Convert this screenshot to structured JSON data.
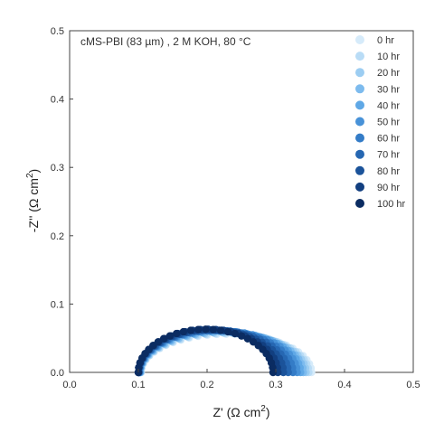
{
  "chart_data": {
    "type": "scatter",
    "title": "",
    "annotation": "cMS-PBI (83 µm) , 2 M KOH, 80 °C",
    "xlabel_base": "Z' (Ω cm",
    "ylabel_base": "-Z'' (Ω cm",
    "label_sup": "2",
    "label_close": ")",
    "xlim": [
      0.0,
      0.5
    ],
    "ylim": [
      0.0,
      0.5
    ],
    "x_ticks": [
      "0.0",
      "0.1",
      "0.2",
      "0.3",
      "0.4",
      "0.5"
    ],
    "y_ticks": [
      "0.0",
      "0.1",
      "0.2",
      "0.3",
      "0.4",
      "0.5"
    ],
    "grid": false,
    "legend_position": "top-right",
    "series": [
      {
        "name": "0 hr",
        "color": "#d6ebfa",
        "r0": 0.104,
        "r1": 0.352,
        "peak": 0.056
      },
      {
        "name": "10 hr",
        "color": "#b9dcf6",
        "r0": 0.104,
        "r1": 0.348,
        "peak": 0.057
      },
      {
        "name": "20 hr",
        "color": "#9ccdf2",
        "r0": 0.103,
        "r1": 0.344,
        "peak": 0.058
      },
      {
        "name": "30 hr",
        "color": "#7dbbee",
        "r0": 0.103,
        "r1": 0.34,
        "peak": 0.059
      },
      {
        "name": "40 hr",
        "color": "#5fa8e6",
        "r0": 0.102,
        "r1": 0.336,
        "peak": 0.06
      },
      {
        "name": "50 hr",
        "color": "#4892d8",
        "r0": 0.102,
        "r1": 0.331,
        "peak": 0.061
      },
      {
        "name": "60 hr",
        "color": "#347cc7",
        "r0": 0.101,
        "r1": 0.325,
        "peak": 0.061
      },
      {
        "name": "70 hr",
        "color": "#2667b2",
        "r0": 0.101,
        "r1": 0.318,
        "peak": 0.062
      },
      {
        "name": "80 hr",
        "color": "#1b539a",
        "r0": 0.1,
        "r1": 0.311,
        "peak": 0.062
      },
      {
        "name": "90 hr",
        "color": "#123f80",
        "r0": 0.1,
        "r1": 0.303,
        "peak": 0.063
      },
      {
        "name": "100 hr",
        "color": "#0b2c62",
        "r0": 0.1,
        "r1": 0.296,
        "peak": 0.063
      }
    ]
  }
}
